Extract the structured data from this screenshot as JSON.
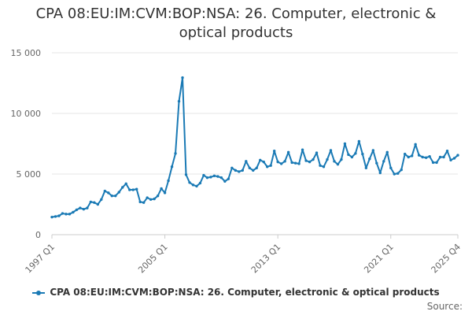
{
  "chart_data": {
    "type": "line",
    "title_lines": [
      "CPA 08:EU:IM:CVM:BOP:NSA: 26. Computer, electronic &",
      "optical products"
    ],
    "xlabel": "",
    "ylabel": "",
    "ylim": [
      0,
      15000
    ],
    "yticks": [
      0,
      5000,
      10000,
      15000
    ],
    "ytick_labels": [
      "0",
      "5 000",
      "10 000",
      "15 000"
    ],
    "x_start_quarter": "1997 Q1",
    "x_tick_labels": [
      {
        "label": "1997 Q1",
        "index": 0
      },
      {
        "label": "2005 Q1",
        "index": 32
      },
      {
        "label": "2013 Q1",
        "index": 64
      },
      {
        "label": "2021 Q1",
        "index": 96
      },
      {
        "label": "2025 Q4",
        "index": 115
      }
    ],
    "grid": true,
    "legend_position": "bottom",
    "series": [
      {
        "name": "CPA 08:EU:IM:CVM:BOP:NSA: 26. Computer, electronic & optical products",
        "color": "#1a7ab5",
        "values": [
          1450,
          1500,
          1550,
          1750,
          1700,
          1700,
          1850,
          2050,
          2200,
          2100,
          2200,
          2700,
          2650,
          2500,
          2900,
          3600,
          3450,
          3200,
          3200,
          3500,
          3900,
          4200,
          3700,
          3700,
          3750,
          2700,
          2650,
          3050,
          2900,
          2950,
          3200,
          3800,
          3450,
          4450,
          5600,
          6700,
          11000,
          12950,
          4950,
          4300,
          4100,
          4000,
          4250,
          4900,
          4700,
          4750,
          4850,
          4800,
          4700,
          4400,
          4600,
          5500,
          5300,
          5200,
          5300,
          6050,
          5500,
          5300,
          5500,
          6150,
          6000,
          5600,
          5700,
          6900,
          6000,
          5850,
          6050,
          6800,
          5950,
          5900,
          5850,
          7000,
          6100,
          6000,
          6200,
          6750,
          5700,
          5600,
          6200,
          6950,
          6050,
          5800,
          6200,
          7500,
          6600,
          6400,
          6700,
          7700,
          6650,
          5500,
          6250,
          6950,
          5900,
          5100,
          6050,
          6800,
          5500,
          5000,
          5050,
          5350,
          6650,
          6400,
          6500,
          7450,
          6550,
          6400,
          6350,
          6450,
          5950,
          5950,
          6400,
          6400,
          6900,
          6150,
          6300,
          6550
        ]
      }
    ]
  },
  "legend": {
    "label": "CPA 08:EU:IM:CVM:BOP:NSA: 26. Computer, electronic & optical products"
  },
  "source": {
    "label": "Source:"
  }
}
